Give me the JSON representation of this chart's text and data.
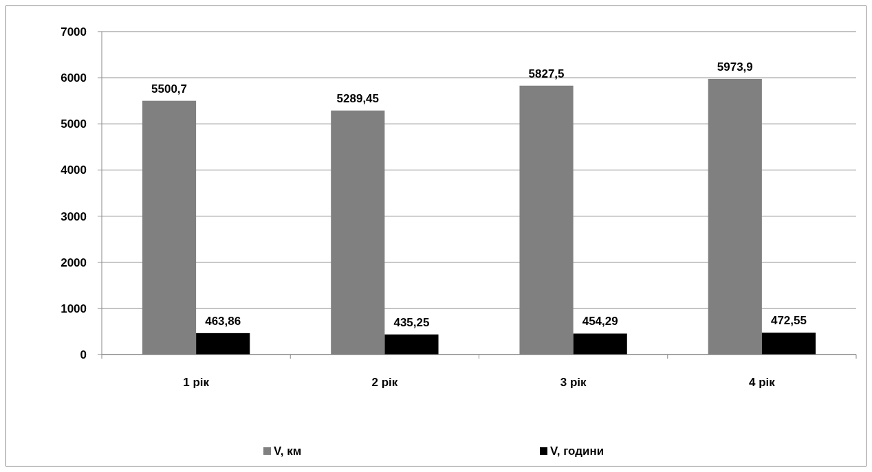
{
  "chart_data": {
    "type": "bar",
    "categories": [
      "1 рік",
      "2 рік",
      "3 рік",
      "4 рік"
    ],
    "series": [
      {
        "name": "V, км",
        "color": "#808080",
        "values": [
          5500.7,
          5289.45,
          5827.5,
          5973.9
        ],
        "value_labels": [
          "5500,7",
          "5289,45",
          "5827,5",
          "5973,9"
        ]
      },
      {
        "name": "V, години",
        "color": "#000000",
        "values": [
          463.86,
          435.25,
          454.29,
          472.55
        ],
        "value_labels": [
          "463,86",
          "435,25",
          "454,29",
          "472,55"
        ]
      }
    ],
    "ylim": [
      0,
      7000
    ],
    "yticks": [
      0,
      1000,
      2000,
      3000,
      4000,
      5000,
      6000,
      7000
    ],
    "grid": "y",
    "legend": "bottom"
  }
}
